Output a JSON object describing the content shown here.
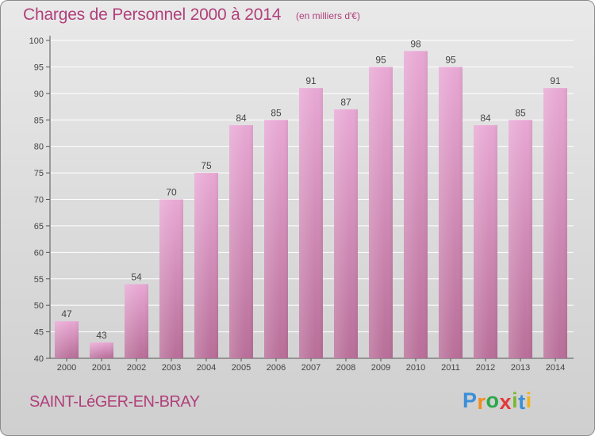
{
  "title": "Charges de Personnel 2000 à 2014",
  "subtitle": "(en milliers d'€)",
  "location": "SAINT-LéGER-EN-BRAY",
  "brand": {
    "text": "Proxiti",
    "letters": [
      "P",
      "r",
      "o",
      "x",
      "i",
      "t",
      "i"
    ],
    "colors": [
      "#3a8fd8",
      "#f28c1e",
      "#2aa84a",
      "#e23b3b",
      "#7ab82f",
      "#3a8fd8",
      "#f2b21e"
    ]
  },
  "colors": {
    "accent": "#b0407a",
    "bar_top": "#e8a8d4",
    "bar_bottom": "#b86e98",
    "grid": "#ffffff"
  },
  "chart_data": {
    "type": "bar",
    "categories": [
      "2000",
      "2001",
      "2002",
      "2003",
      "2004",
      "2005",
      "2006",
      "2007",
      "2008",
      "2009",
      "2010",
      "2011",
      "2012",
      "2013",
      "2014"
    ],
    "values": [
      47,
      43,
      54,
      70,
      75,
      84,
      85,
      91,
      87,
      95,
      98,
      95,
      84,
      85,
      91
    ],
    "ylim": [
      40,
      100
    ],
    "yticks": [
      40,
      45,
      50,
      55,
      60,
      65,
      70,
      75,
      80,
      85,
      90,
      95,
      100
    ],
    "grid": true,
    "xlabel": "",
    "ylabel": ""
  }
}
